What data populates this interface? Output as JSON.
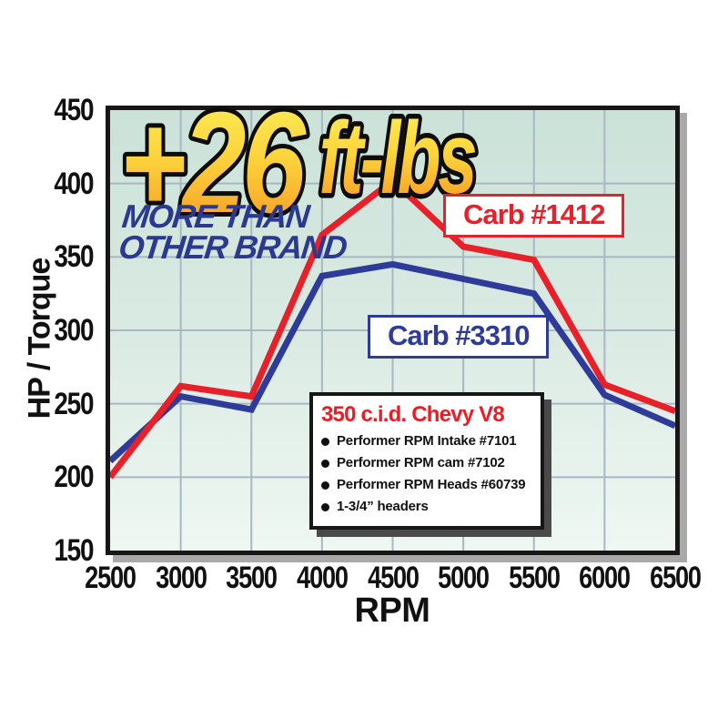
{
  "chart_data": {
    "type": "line",
    "x": [
      2500,
      3000,
      3500,
      4000,
      4500,
      5000,
      5500,
      6000,
      6500
    ],
    "series": [
      {
        "name": "Carb #1412",
        "color": "#e8202a",
        "values": [
          200,
          262,
          255,
          365,
          402,
          357,
          348,
          263,
          245
        ]
      },
      {
        "name": "Carb #3310",
        "color": "#2e3b98",
        "values": [
          211,
          255,
          246,
          337,
          345,
          335,
          325,
          256,
          235
        ]
      }
    ],
    "xlabel": "RPM",
    "ylabel": "HP / Torque",
    "xlim": [
      2500,
      6500
    ],
    "ylim": [
      150,
      450
    ],
    "x_ticks": [
      2500,
      3000,
      3500,
      4000,
      4500,
      5000,
      5500,
      6000,
      6500
    ],
    "y_ticks": [
      150,
      200,
      250,
      300,
      350,
      400,
      450
    ],
    "grid": true,
    "legend_position": "on-chart boxes near each curve"
  },
  "promo": {
    "headline_big": "+26",
    "headline_small": "ft-lbs",
    "subline1": "MORE THAN",
    "subline2": "OTHER BRAND",
    "gradient_top": "#fbf15a",
    "gradient_mid": "#fcd53e",
    "gradient_bottom": "#f6921f",
    "subline_color": "#2b3990"
  },
  "info_box": {
    "title": "350 c.i.d. Chevy V8",
    "title_color": "#ed1c24",
    "bullets": [
      "Performer RPM Intake #7101",
      "Performer RPM cam #7102",
      "Performer RPM Heads #60739",
      "1-3/4” headers"
    ]
  },
  "colors": {
    "series_red": "#e8202a",
    "series_blue": "#2e3b98",
    "grid": "#a8b7c1",
    "frame": "#171717",
    "frame_shadow": "#a9a9a9",
    "plot_bg_top": "#cbe2d9",
    "plot_bg_bottom": "#eff7f2",
    "info_shadow": "#4a4a4a",
    "text": "#111111"
  }
}
